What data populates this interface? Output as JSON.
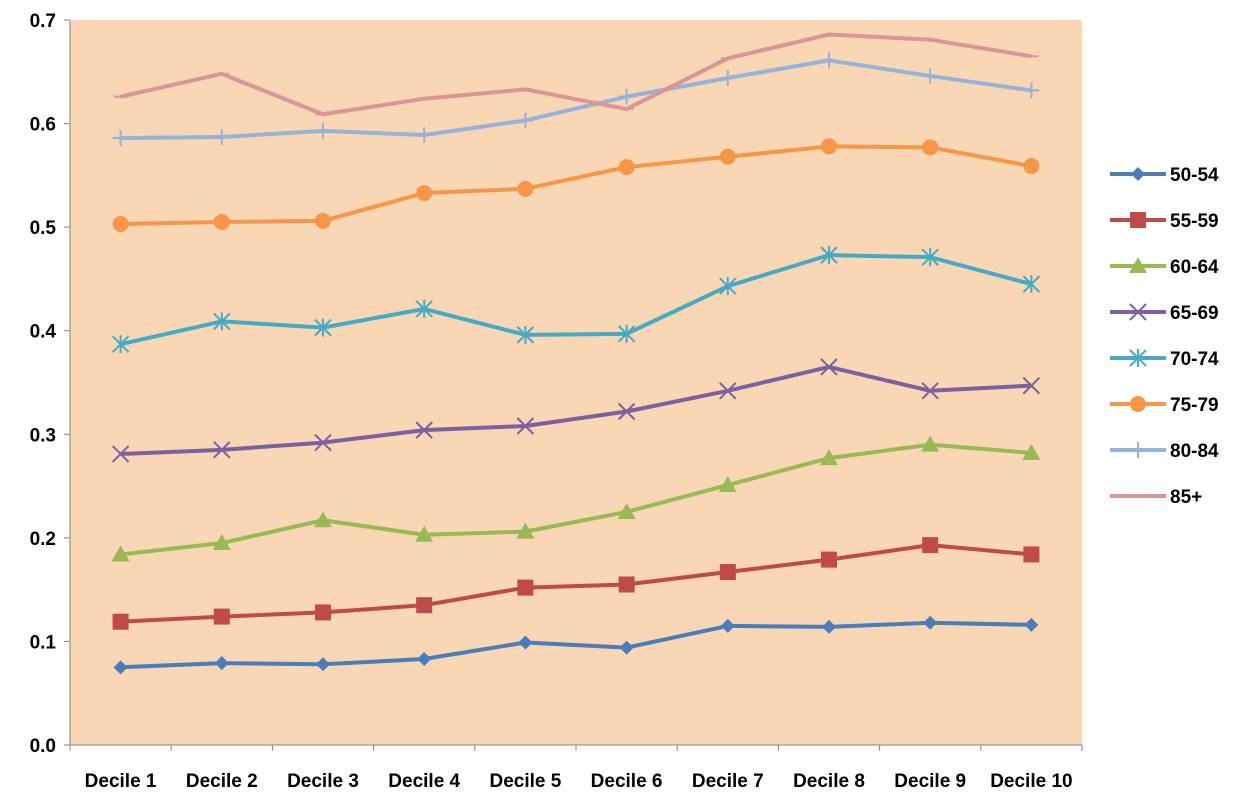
{
  "chart_data": {
    "type": "line",
    "title": "",
    "xlabel": "",
    "ylabel": "",
    "categories": [
      "Decile 1",
      "Decile 2",
      "Decile 3",
      "Decile 4",
      "Decile 5",
      "Decile 6",
      "Decile 7",
      "Decile 8",
      "Decile 9",
      "Decile 10"
    ],
    "ylim": [
      0,
      0.7
    ],
    "y_ticks": [
      "0.0",
      "0.1",
      "0.2",
      "0.3",
      "0.4",
      "0.5",
      "0.6",
      "0.7"
    ],
    "grid": false,
    "legend_position": "right",
    "plot_background": "#FAD7B4",
    "series": [
      {
        "name": "50-54",
        "color": "#4A7EBB",
        "marker": "diamond",
        "values": [
          0.075,
          0.079,
          0.078,
          0.083,
          0.099,
          0.094,
          0.115,
          0.114,
          0.118,
          0.116
        ]
      },
      {
        "name": "55-59",
        "color": "#BE4B48",
        "marker": "square",
        "values": [
          0.119,
          0.124,
          0.128,
          0.135,
          0.152,
          0.155,
          0.167,
          0.179,
          0.193,
          0.184
        ]
      },
      {
        "name": "60-64",
        "color": "#98B954",
        "marker": "triangle",
        "values": [
          0.184,
          0.195,
          0.217,
          0.203,
          0.206,
          0.225,
          0.251,
          0.277,
          0.29,
          0.282
        ]
      },
      {
        "name": "65-69",
        "color": "#7D60A0",
        "marker": "x",
        "values": [
          0.281,
          0.285,
          0.292,
          0.304,
          0.308,
          0.322,
          0.342,
          0.365,
          0.342,
          0.347
        ]
      },
      {
        "name": "70-74",
        "color": "#46AAC5",
        "marker": "star",
        "values": [
          0.387,
          0.409,
          0.403,
          0.421,
          0.396,
          0.397,
          0.443,
          0.473,
          0.471,
          0.445
        ]
      },
      {
        "name": "75-79",
        "color": "#F79646",
        "marker": "circle",
        "values": [
          0.503,
          0.505,
          0.506,
          0.533,
          0.537,
          0.558,
          0.568,
          0.578,
          0.577,
          0.559
        ]
      },
      {
        "name": "80-84",
        "color": "#95B3D7",
        "marker": "plus",
        "values": [
          0.586,
          0.587,
          0.593,
          0.589,
          0.603,
          0.626,
          0.644,
          0.661,
          0.646,
          0.632
        ]
      },
      {
        "name": "85+",
        "color": "#D99694",
        "marker": "dash",
        "values": [
          0.626,
          0.648,
          0.609,
          0.624,
          0.633,
          0.614,
          0.663,
          0.686,
          0.681,
          0.665
        ]
      }
    ]
  }
}
